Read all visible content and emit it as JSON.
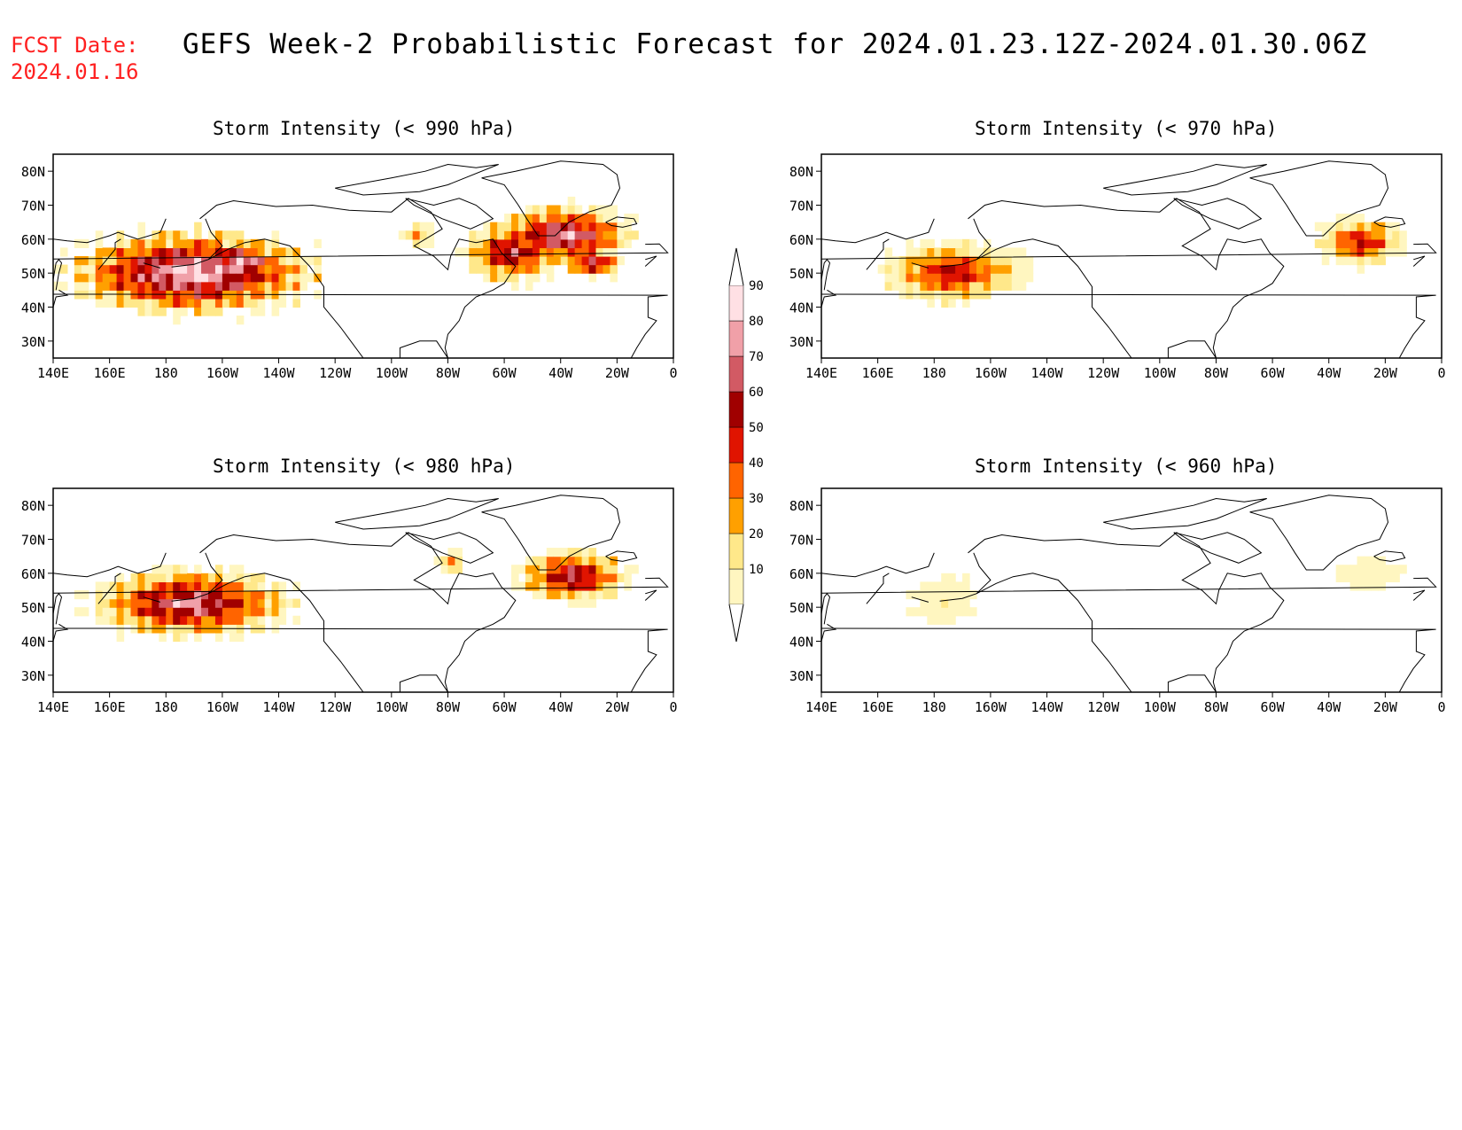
{
  "header": {
    "fcst_label": "FCST Date:",
    "fcst_date": "2024.01.16",
    "title": "GEFS Week-2 Probabilistic Forecast for 2024.01.23.12Z-2024.01.30.06Z"
  },
  "axes": {
    "lat_labels": [
      "80N",
      "70N",
      "60N",
      "50N",
      "40N",
      "30N"
    ],
    "lon_labels": [
      "140E",
      "160E",
      "180",
      "160W",
      "140W",
      "120W",
      "100W",
      "80W",
      "60W",
      "40W",
      "20W",
      "0"
    ]
  },
  "colorbar": {
    "levels": [
      "10",
      "20",
      "30",
      "40",
      "50",
      "60",
      "70",
      "80",
      "90"
    ],
    "colors": [
      "#fff6c0",
      "#ffe88a",
      "#ffa000",
      "#ff6400",
      "#e01400",
      "#a00000",
      "#d25a64",
      "#f0a0a8",
      "#ffe0e4"
    ]
  },
  "panels": [
    {
      "id": "p990",
      "title": "Storm Intensity (< 990 hPa)",
      "blobs": [
        {
          "cx": -172,
          "cy": 49,
          "rx": 40,
          "ry": 11,
          "peak": 8
        },
        {
          "cx": -155,
          "cy": 52,
          "rx": 14,
          "ry": 6,
          "peak": 8
        },
        {
          "cx": -58,
          "cy": 55,
          "rx": 16,
          "ry": 8,
          "peak": 6
        },
        {
          "cx": -40,
          "cy": 60,
          "rx": 22,
          "ry": 8,
          "peak": 7
        },
        {
          "cx": -30,
          "cy": 52,
          "rx": 10,
          "ry": 4,
          "peak": 6
        },
        {
          "cx": -92,
          "cy": 60,
          "rx": 5,
          "ry": 3,
          "peak": 3
        }
      ]
    },
    {
      "id": "p970",
      "title": "Storm Intensity (< 970 hPa)",
      "blobs": [
        {
          "cx": -175,
          "cy": 49,
          "rx": 22,
          "ry": 8,
          "peak": 5
        },
        {
          "cx": -160,
          "cy": 50,
          "rx": 14,
          "ry": 6,
          "peak": 2
        },
        {
          "cx": -30,
          "cy": 58,
          "rx": 14,
          "ry": 6,
          "peak": 5
        }
      ]
    },
    {
      "id": "p980",
      "title": "Storm Intensity (< 980 hPa)",
      "blobs": [
        {
          "cx": -172,
          "cy": 50,
          "rx": 32,
          "ry": 9,
          "peak": 7
        },
        {
          "cx": -37,
          "cy": 58,
          "rx": 18,
          "ry": 7,
          "peak": 6
        },
        {
          "cx": -80,
          "cy": 62,
          "rx": 5,
          "ry": 3,
          "peak": 3
        }
      ]
    },
    {
      "id": "p960",
      "title": "Storm Intensity (< 960 hPa)",
      "blobs": [
        {
          "cx": -178,
          "cy": 51,
          "rx": 10,
          "ry": 6,
          "peak": 1
        },
        {
          "cx": -27,
          "cy": 59,
          "rx": 10,
          "ry": 4,
          "peak": 1
        }
      ]
    }
  ]
}
